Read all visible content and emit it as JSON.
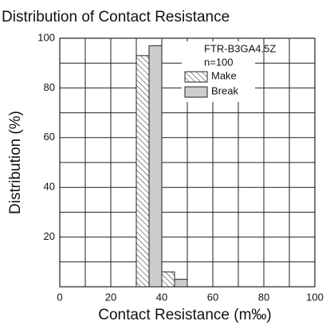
{
  "chart_data": {
    "type": "histogram",
    "title": "Distribution of Contact Resistance",
    "x_label": "Contact Resistance (m‰)",
    "y_label": "Distribution (%)",
    "annotations": [
      "FTR-B3GA4.5Z",
      "n=100"
    ],
    "series": [
      {
        "name": "Make",
        "pattern": "hatch",
        "color": "#222222",
        "bins": [
          30,
          35,
          40,
          45
        ],
        "values": [
          93,
          null,
          6
        ]
      },
      {
        "name": "Break",
        "pattern": "solid",
        "color": "#cccccc",
        "bins": [
          35,
          40,
          45,
          50
        ],
        "values": [
          97,
          null,
          3
        ]
      }
    ],
    "xlim": [
      0,
      100
    ],
    "xticks": [
      0,
      20,
      40,
      60,
      80,
      100
    ],
    "xminor": [
      10,
      30,
      50,
      70,
      90
    ],
    "ylim": [
      0,
      100
    ],
    "yticks": [
      20,
      40,
      60,
      80,
      100
    ],
    "yminor": [
      10,
      30,
      50,
      70,
      90
    ],
    "grid": true,
    "legend": "upper right"
  }
}
